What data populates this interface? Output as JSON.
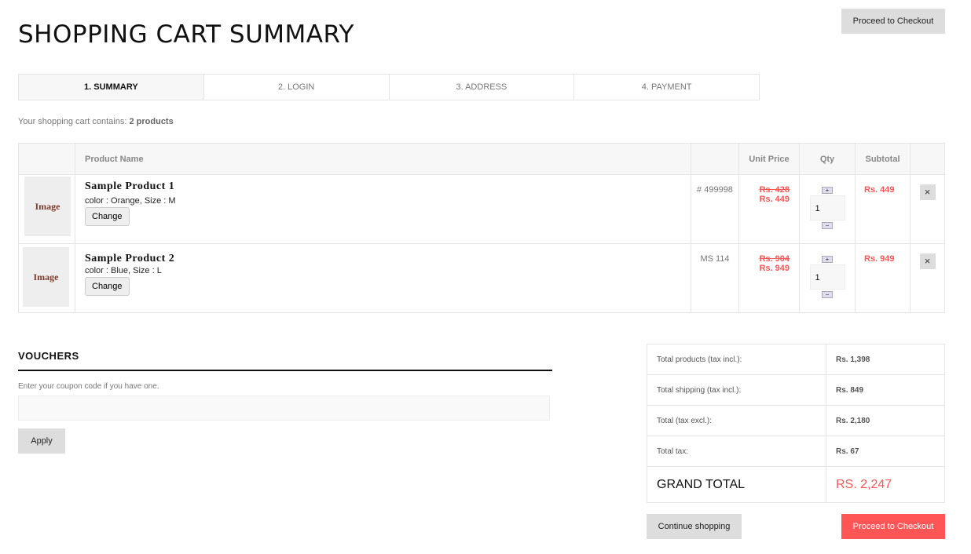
{
  "header": {
    "title": "SHOPPING CART SUMMARY",
    "checkout_top": "Proceed to Checkout"
  },
  "steps": [
    "1. SUMMARY",
    "2. LOGIN",
    "3. ADDRESS",
    "4. PAYMENT"
  ],
  "cart_count": {
    "prefix": "Your shopping cart contains:",
    "count": "2 products"
  },
  "table": {
    "headers": [
      "",
      "Product Name",
      "",
      "Unit Price",
      "Qty",
      "Subtotal",
      ""
    ],
    "rows": [
      {
        "image": "Image",
        "name": "Sample Product 1",
        "attrs": "color : Orange, Size : M",
        "change": "Change",
        "ref": "# 499998",
        "old_price": "Rs. 428",
        "price": "Rs. 449",
        "qty": "1",
        "subtotal": "Rs. 449"
      },
      {
        "image": "Image",
        "name": "Sample Product 2",
        "attrs": "color : Blue, Size : L",
        "change": "Change",
        "ref": "MS 114",
        "old_price": "Rs. 904",
        "price": "Rs. 949",
        "qty": "1",
        "subtotal": "Rs. 949"
      }
    ]
  },
  "vouchers": {
    "title": "VOUCHERS",
    "hint": "Enter your coupon code if you have one.",
    "input": "",
    "apply": "Apply"
  },
  "totals": [
    {
      "label": "Total products (tax incl.):",
      "value": "Rs. 1,398"
    },
    {
      "label": "Total shipping (tax incl.):",
      "value": "Rs. 849"
    },
    {
      "label": "Total (tax excl.):",
      "value": "Rs. 2,180"
    },
    {
      "label": "Total tax:",
      "value": "Rs. 67"
    }
  ],
  "grand_total": {
    "label": "GRAND TOTAL",
    "value": "RS. 2,247"
  },
  "footer": {
    "continue": "Continue shopping",
    "checkout": "Proceed to Checkout"
  },
  "colors": {
    "accent": "#ff5555"
  }
}
